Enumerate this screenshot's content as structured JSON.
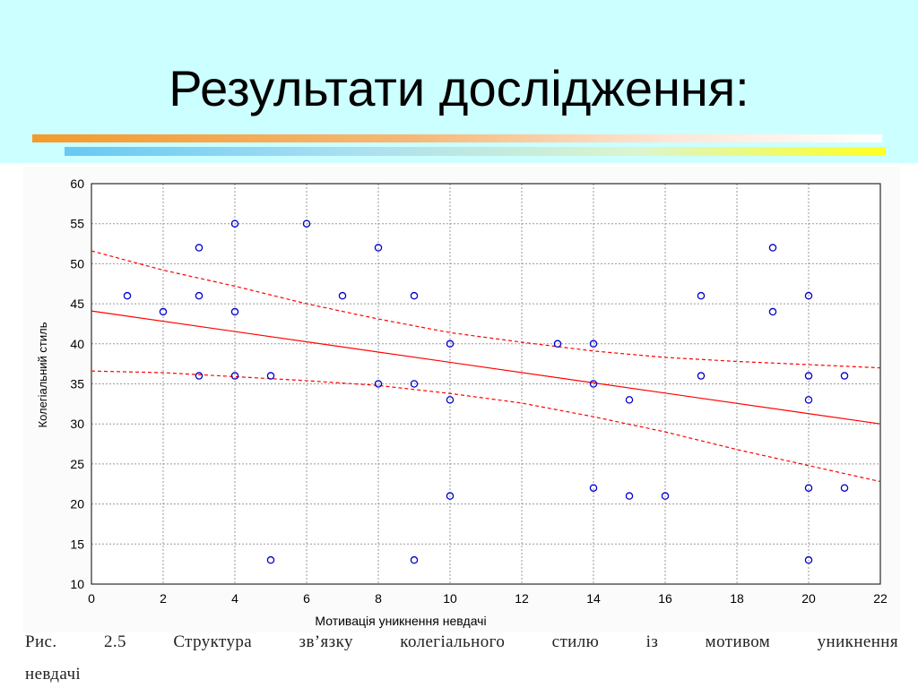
{
  "slide": {
    "title": "Результати дослідження:",
    "caption_line1": "Рис. 2.5 Структура зв’язку колегіального стилю із мотивом уникнення",
    "caption_line2": "невдачі"
  },
  "colors": {
    "header_bg": "#ccffff",
    "points": "#0000cc",
    "regression": "#ff0000",
    "grid": "#9a9a9a"
  },
  "chart_data": {
    "type": "scatter",
    "title": "",
    "xlabel": "Мотивація уникнення невдачі",
    "ylabel": "Колегіальний стиль",
    "xlim": [
      0,
      22
    ],
    "ylim": [
      10,
      60
    ],
    "xticks": [
      0,
      2,
      4,
      6,
      8,
      10,
      12,
      14,
      16,
      18,
      20,
      22
    ],
    "yticks": [
      10,
      15,
      20,
      25,
      30,
      35,
      40,
      45,
      50,
      55,
      60
    ],
    "grid": true,
    "points": [
      [
        1,
        46
      ],
      [
        2,
        44
      ],
      [
        3,
        52
      ],
      [
        3,
        46
      ],
      [
        3,
        36
      ],
      [
        4,
        55
      ],
      [
        4,
        44
      ],
      [
        4,
        36
      ],
      [
        5,
        36
      ],
      [
        5,
        13
      ],
      [
        6,
        55
      ],
      [
        7,
        46
      ],
      [
        8,
        52
      ],
      [
        8,
        35
      ],
      [
        9,
        46
      ],
      [
        9,
        35
      ],
      [
        9,
        13
      ],
      [
        10,
        40
      ],
      [
        10,
        33
      ],
      [
        10,
        21
      ],
      [
        13,
        40
      ],
      [
        14,
        40
      ],
      [
        14,
        35
      ],
      [
        14,
        22
      ],
      [
        15,
        33
      ],
      [
        15,
        21
      ],
      [
        16,
        21
      ],
      [
        17,
        46
      ],
      [
        17,
        36
      ],
      [
        19,
        52
      ],
      [
        19,
        44
      ],
      [
        20,
        46
      ],
      [
        20,
        36
      ],
      [
        20,
        33
      ],
      [
        20,
        22
      ],
      [
        20,
        13
      ],
      [
        21,
        36
      ],
      [
        21,
        22
      ]
    ],
    "regression_line": {
      "x": [
        0,
        22
      ],
      "y": [
        44.1,
        30.0
      ]
    },
    "confidence_upper": {
      "x": [
        0,
        2,
        4,
        6,
        8,
        10,
        12,
        14,
        16,
        18,
        20,
        22
      ],
      "y": [
        51.6,
        49.2,
        47.2,
        45.0,
        43.1,
        41.4,
        40.2,
        39.1,
        38.3,
        37.8,
        37.4,
        37.0
      ]
    },
    "confidence_lower": {
      "x": [
        0,
        2,
        4,
        6,
        8,
        10,
        12,
        14,
        16,
        18,
        20,
        22
      ],
      "y": [
        36.6,
        36.4,
        35.9,
        35.4,
        34.8,
        33.8,
        32.6,
        30.9,
        29.0,
        26.8,
        24.8,
        22.8
      ]
    }
  }
}
